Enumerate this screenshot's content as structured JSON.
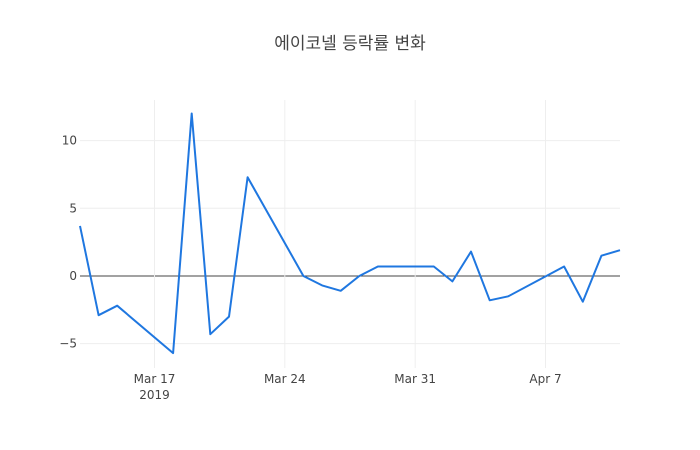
{
  "chart_data": {
    "type": "line",
    "title": "에이코넬 등락률 변화",
    "xlabel": "",
    "ylabel": "",
    "xlim": [
      "2019-03-13",
      "2019-04-11"
    ],
    "ylim": [
      -6.8,
      13
    ],
    "grid": true,
    "colors": {
      "line": "#1f77e0",
      "zeroline": "#444444",
      "grid": "#eeeeee",
      "text": "#444444"
    },
    "x_ticks": [
      {
        "date": "2019-03-17",
        "label": "Mar 17",
        "sublabel": "2019"
      },
      {
        "date": "2019-03-24",
        "label": "Mar 24",
        "sublabel": ""
      },
      {
        "date": "2019-03-31",
        "label": "Mar 31",
        "sublabel": ""
      },
      {
        "date": "2019-04-07",
        "label": "Apr 7",
        "sublabel": ""
      }
    ],
    "y_ticks": [
      {
        "value": -5,
        "label": "−5"
      },
      {
        "value": 0,
        "label": "0"
      },
      {
        "value": 5,
        "label": "5"
      },
      {
        "value": 10,
        "label": "10"
      }
    ],
    "series": [
      {
        "x": [
          "2019-03-13",
          "2019-03-14",
          "2019-03-15",
          "2019-03-18",
          "2019-03-19",
          "2019-03-20",
          "2019-03-21",
          "2019-03-22",
          "2019-03-25",
          "2019-03-26",
          "2019-03-27",
          "2019-03-28",
          "2019-03-29",
          "2019-04-01",
          "2019-04-02",
          "2019-04-03",
          "2019-04-04",
          "2019-04-05",
          "2019-04-08",
          "2019-04-09",
          "2019-04-10",
          "2019-04-11"
        ],
        "y": [
          3.7,
          -2.9,
          -2.2,
          -5.7,
          12.0,
          -4.3,
          -3.0,
          7.3,
          0.0,
          -0.7,
          -1.1,
          0.0,
          0.7,
          0.7,
          -0.4,
          1.8,
          -1.8,
          -1.5,
          0.7,
          -1.9,
          1.5,
          1.9
        ]
      }
    ]
  }
}
